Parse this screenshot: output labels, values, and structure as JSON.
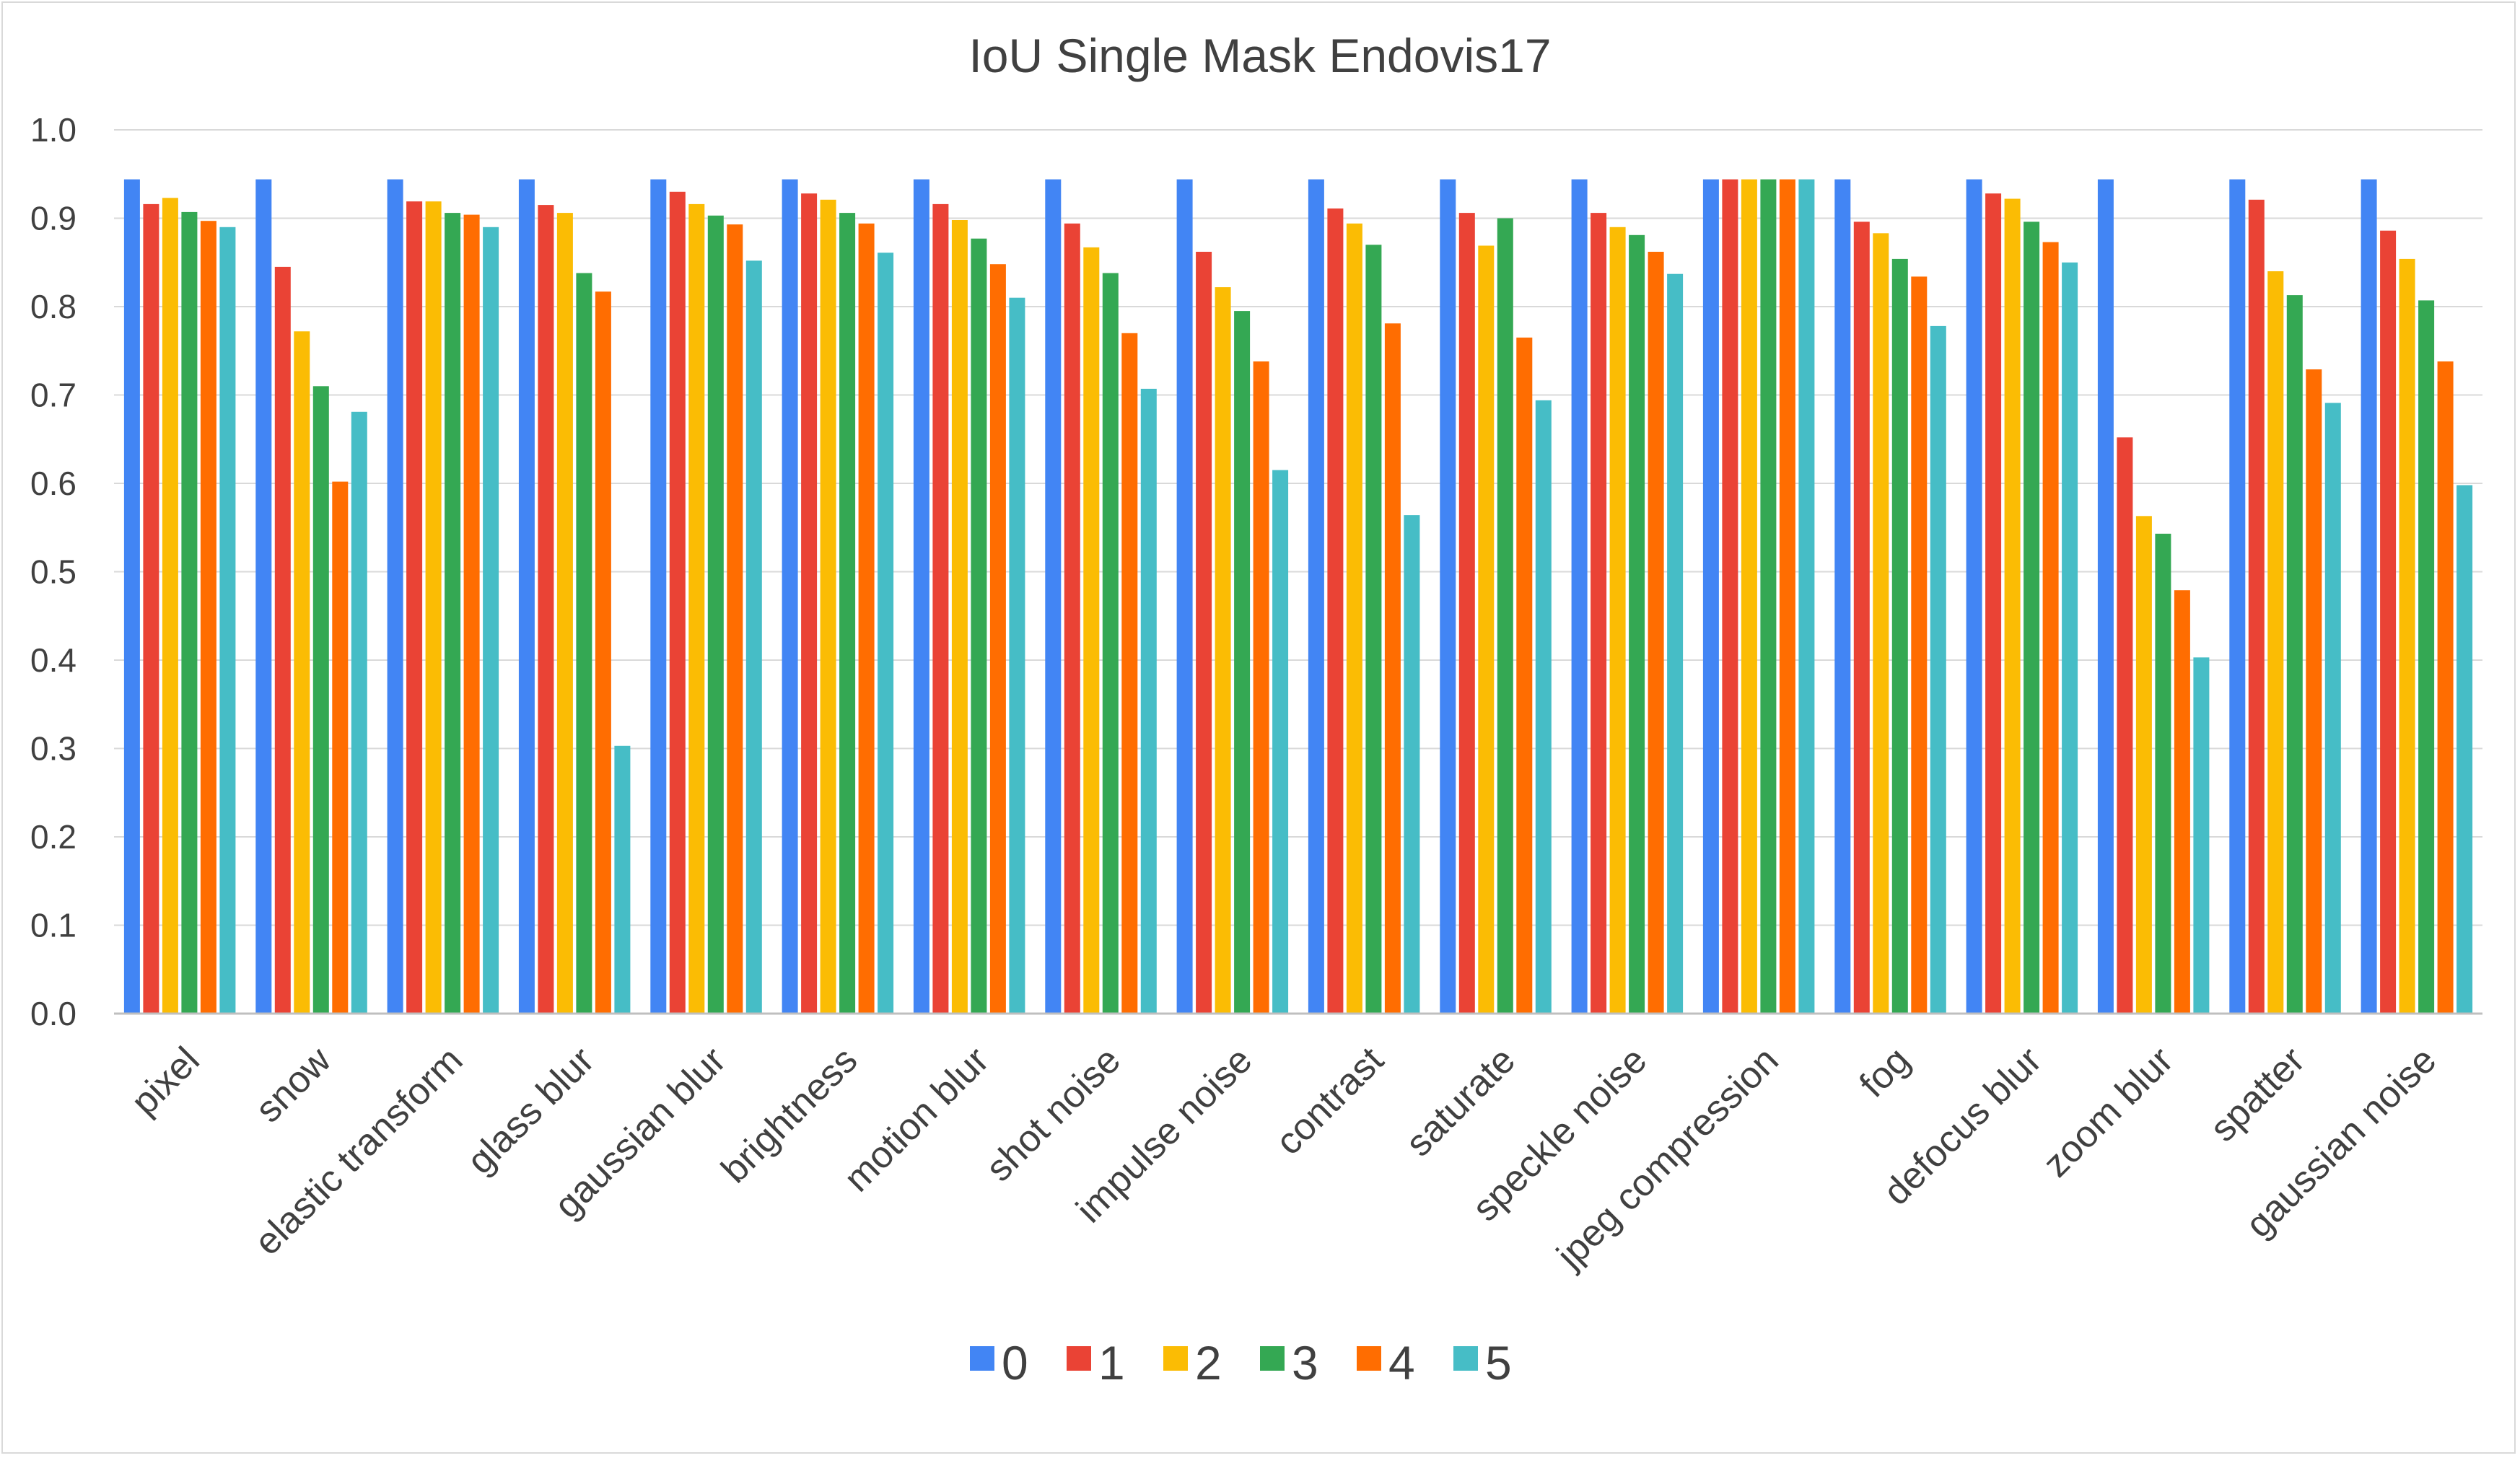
{
  "chart_data": {
    "type": "bar",
    "title": "IoU  Single Mask Endovis17",
    "xlabel": "",
    "ylabel": "",
    "ylim": [
      0,
      1.0
    ],
    "yticks": [
      "0.0",
      "0.1",
      "0.2",
      "0.3",
      "0.4",
      "0.5",
      "0.6",
      "0.7",
      "0.8",
      "0.9",
      "1.0"
    ],
    "grid": true,
    "legend_position": "bottom",
    "categories": [
      "pixel",
      "snow",
      "elastic  transform",
      "glass  blur",
      "gaussian blur",
      "brightness",
      "motion blur",
      "shot noise",
      "impulse noise",
      "contrast",
      "saturate",
      "speckle noise",
      "jpeg compression",
      "fog",
      "defocus blur",
      "zoom blur",
      "spatter",
      "gaussian noise"
    ],
    "series": [
      {
        "name": "0",
        "color": "#4285f4",
        "values": [
          0.944,
          0.944,
          0.944,
          0.944,
          0.944,
          0.944,
          0.944,
          0.944,
          0.944,
          0.944,
          0.944,
          0.944,
          0.944,
          0.944,
          0.944,
          0.944,
          0.944,
          0.944
        ]
      },
      {
        "name": "1",
        "color": "#ea4335",
        "values": [
          0.916,
          0.845,
          0.919,
          0.915,
          0.93,
          0.928,
          0.916,
          0.894,
          0.862,
          0.911,
          0.906,
          0.906,
          0.944,
          0.896,
          0.928,
          0.652,
          0.921,
          0.886
        ]
      },
      {
        "name": "2",
        "color": "#fbbc04",
        "values": [
          0.923,
          0.772,
          0.919,
          0.906,
          0.916,
          0.921,
          0.898,
          0.867,
          0.822,
          0.894,
          0.869,
          0.89,
          0.944,
          0.883,
          0.922,
          0.563,
          0.84,
          0.854
        ]
      },
      {
        "name": "3",
        "color": "#34a853",
        "values": [
          0.907,
          0.71,
          0.906,
          0.838,
          0.903,
          0.906,
          0.877,
          0.838,
          0.795,
          0.87,
          0.9,
          0.881,
          0.944,
          0.854,
          0.896,
          0.543,
          0.813,
          0.807
        ]
      },
      {
        "name": "4",
        "color": "#ff6d01",
        "values": [
          0.897,
          0.602,
          0.904,
          0.817,
          0.893,
          0.894,
          0.848,
          0.77,
          0.738,
          0.781,
          0.765,
          0.862,
          0.944,
          0.834,
          0.873,
          0.479,
          0.729,
          0.738
        ]
      },
      {
        "name": "5",
        "color": "#46bdc6",
        "values": [
          0.89,
          0.681,
          0.89,
          0.303,
          0.852,
          0.861,
          0.81,
          0.707,
          0.615,
          0.564,
          0.694,
          0.837,
          0.944,
          0.778,
          0.85,
          0.403,
          0.691,
          0.598
        ]
      }
    ]
  }
}
